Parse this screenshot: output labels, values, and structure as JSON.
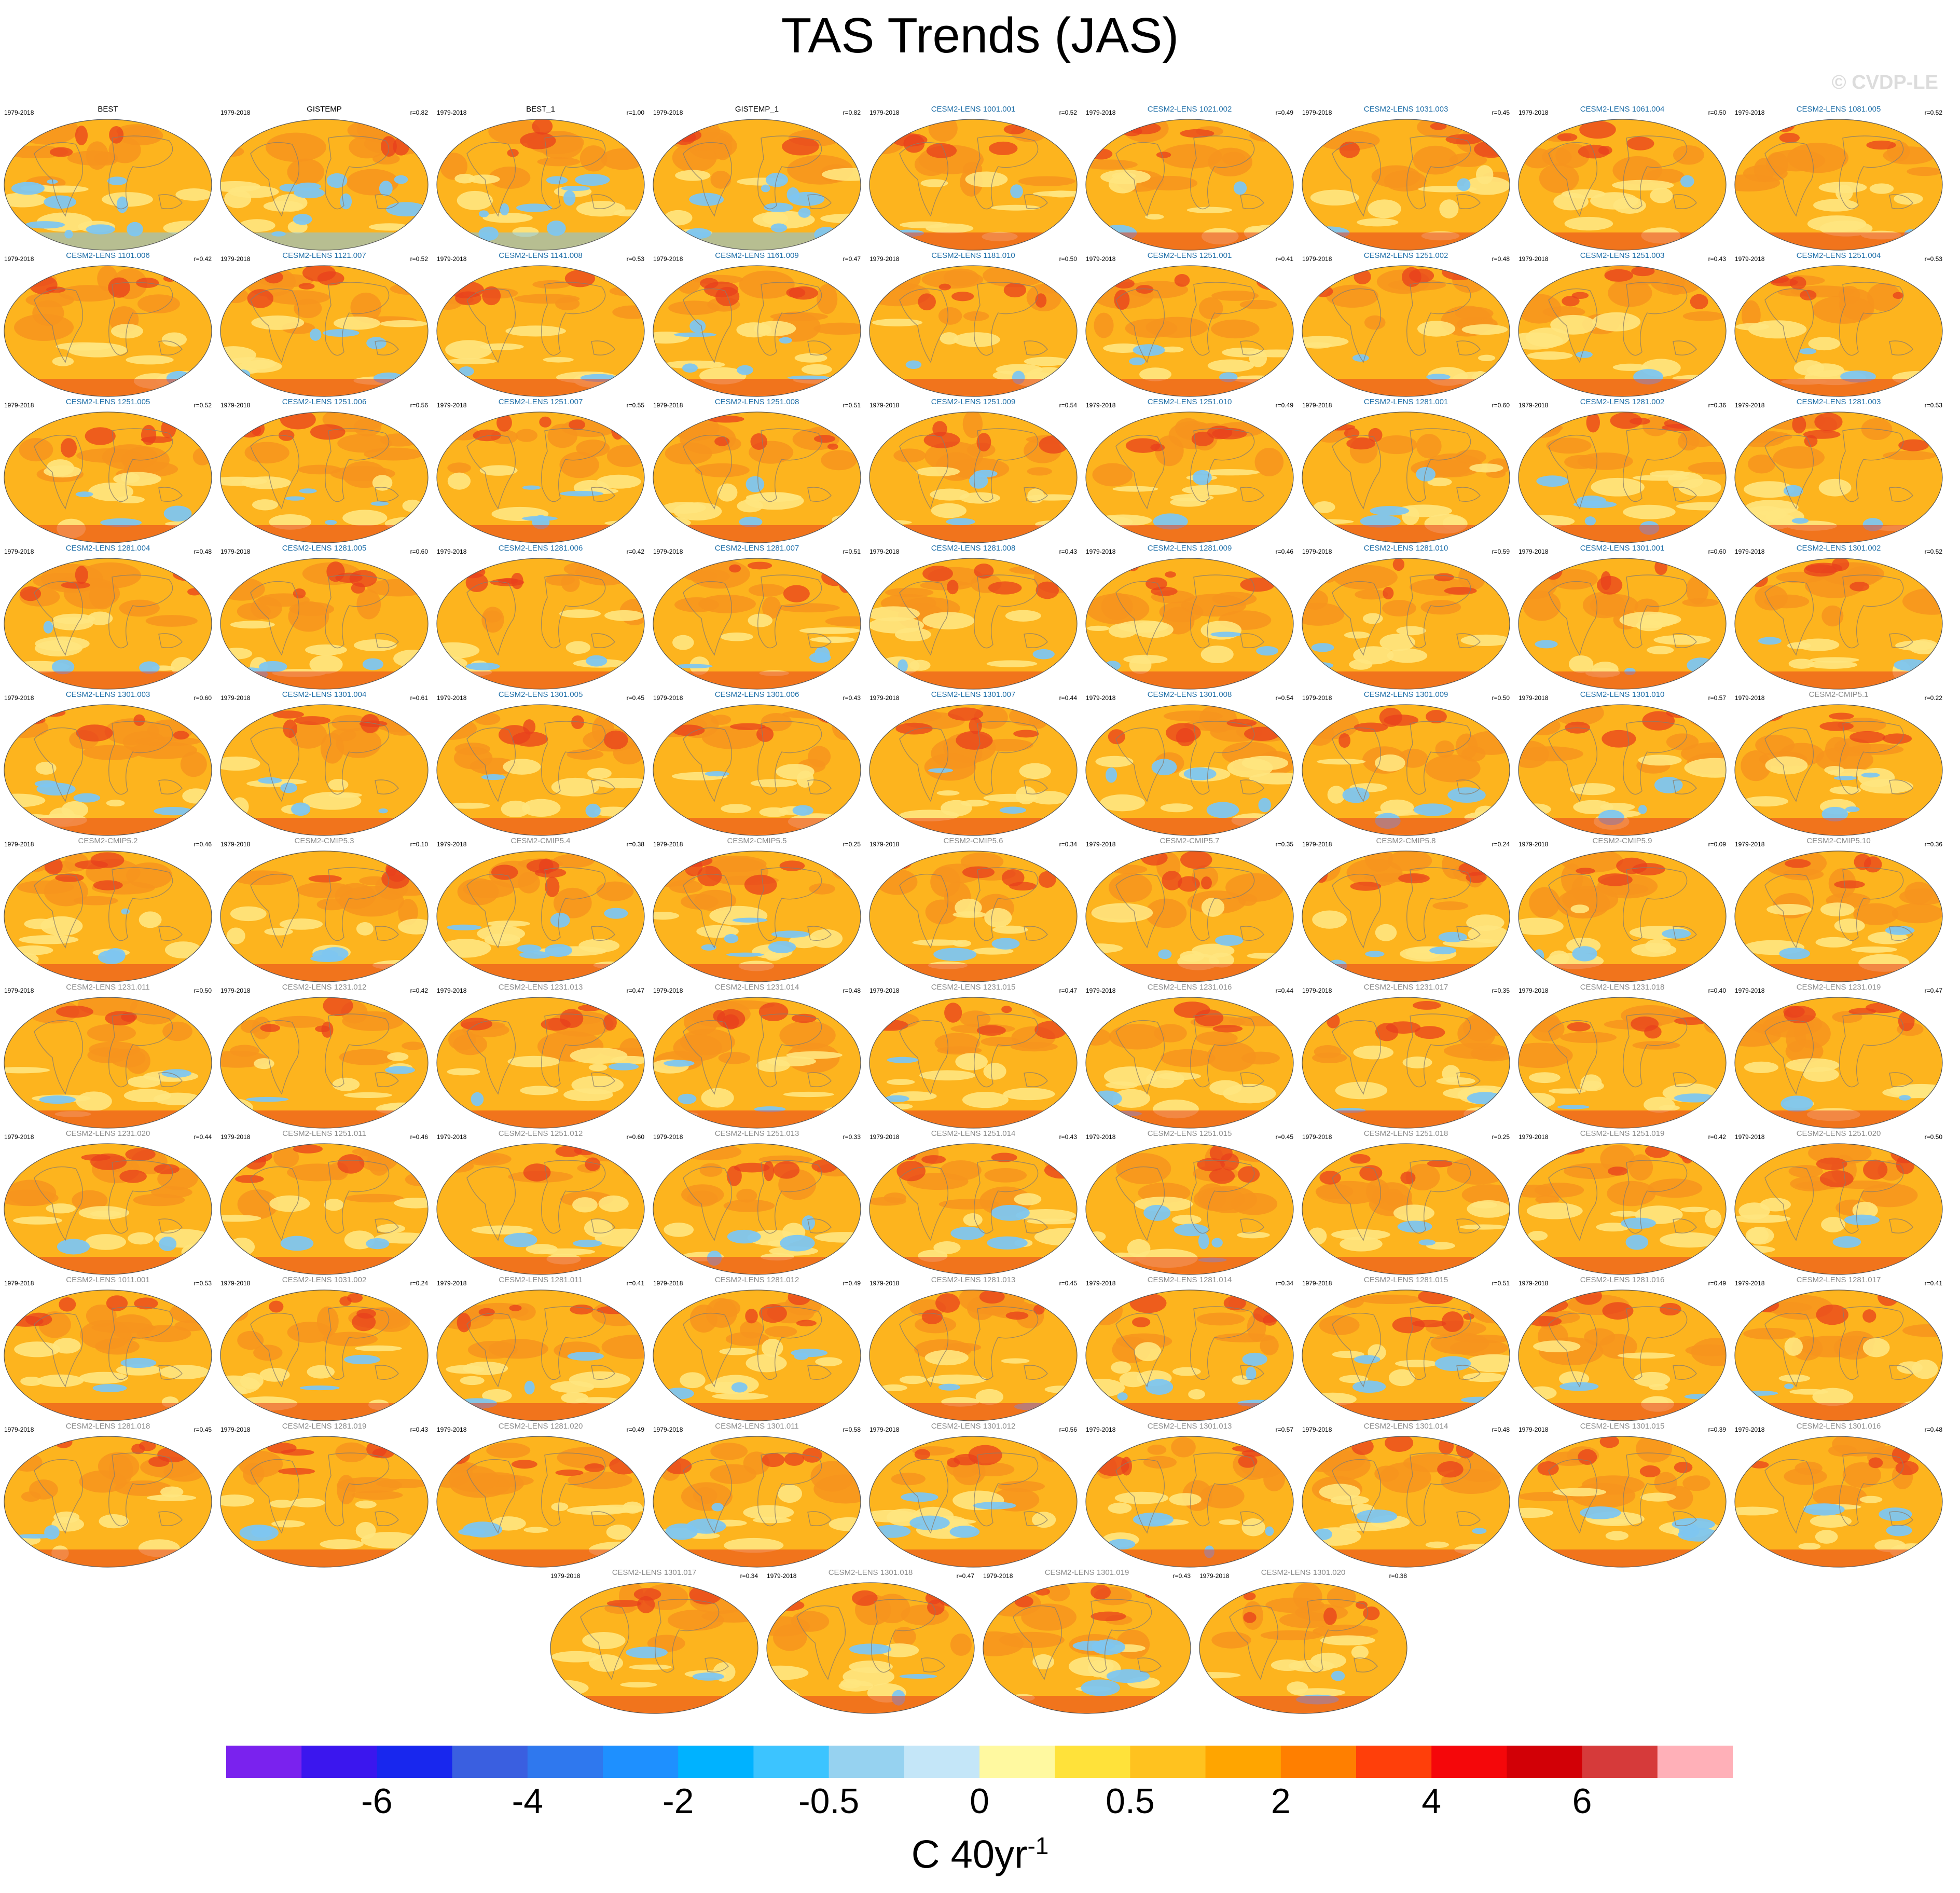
{
  "title": "TAS Trends (JAS)",
  "watermark": "© CVDP-LE",
  "period": "1979-2018",
  "colors": {
    "obs_title": "#000000",
    "lens_title": "#1f6fa8",
    "cmip_title": "#8c8c8c",
    "coastline": "#8b7d6b",
    "map_base": "#fdb41e",
    "map_warm": "#f7941d",
    "map_hot": "#e8401c",
    "map_cool": "#ffe680",
    "map_cold": "#7ec6f0"
  },
  "colorbar": {
    "colors": [
      "#7a22ee",
      "#3b16ee",
      "#1827ee",
      "#3a5fe0",
      "#2f78ee",
      "#1e90ff",
      "#00b2ff",
      "#3cc4ff",
      "#96d2f0",
      "#c4e6f8",
      "#fff9a0",
      "#ffe23a",
      "#ffc21f",
      "#ffa500",
      "#ff7f00",
      "#ff3f0a",
      "#f5070a",
      "#d20006",
      "#d63a3a",
      "#ffb0b8"
    ],
    "labels": [
      "-6",
      "-4",
      "-2",
      "-0.5",
      "0",
      "0.5",
      "2",
      "4",
      "6"
    ],
    "units_main": "C 40yr",
    "units_sup": "-1"
  },
  "chart_data": {
    "type": "map-panels",
    "title": "TAS Trends (JAS)",
    "period": "1979-2018",
    "units": "C 40yr-1",
    "panels": [
      {
        "name": "BEST",
        "r": "",
        "kind": "obs",
        "cool": 0.22
      },
      {
        "name": "GISTEMP",
        "r": "r=0.82",
        "kind": "obs",
        "cool": 0.24
      },
      {
        "name": "BEST_1",
        "r": "r=1.00",
        "kind": "obs",
        "cool": 0.22
      },
      {
        "name": "GISTEMP_1",
        "r": "r=0.82",
        "kind": "obs",
        "cool": 0.24
      },
      {
        "name": "CESM2-LENS 1001.001",
        "r": "r=0.52",
        "kind": "lens",
        "cool": 0.06
      },
      {
        "name": "CESM2-LENS 1021.002",
        "r": "r=0.49",
        "kind": "lens",
        "cool": 0.04
      },
      {
        "name": "CESM2-LENS 1031.003",
        "r": "r=0.45",
        "kind": "lens",
        "cool": 0.05
      },
      {
        "name": "CESM2-LENS 1061.004",
        "r": "r=0.50",
        "kind": "lens",
        "cool": 0.06
      },
      {
        "name": "CESM2-LENS 1081.005",
        "r": "r=0.52",
        "kind": "lens",
        "cool": 0.04
      },
      {
        "name": "CESM2-LENS 1101.006",
        "r": "r=0.42",
        "kind": "lens",
        "cool": 0.05
      },
      {
        "name": "CESM2-LENS 1121.007",
        "r": "r=0.52",
        "kind": "lens",
        "cool": 0.12
      },
      {
        "name": "CESM2-LENS 1141.008",
        "r": "r=0.53",
        "kind": "lens",
        "cool": 0.06
      },
      {
        "name": "CESM2-LENS 1161.009",
        "r": "r=0.47",
        "kind": "lens",
        "cool": 0.14
      },
      {
        "name": "CESM2-LENS 1181.010",
        "r": "r=0.50",
        "kind": "lens",
        "cool": 0.05
      },
      {
        "name": "CESM2-LENS 1251.001",
        "r": "r=0.41",
        "kind": "lens",
        "cool": 0.07
      },
      {
        "name": "CESM2-LENS 1251.002",
        "r": "r=0.48",
        "kind": "lens",
        "cool": 0.05
      },
      {
        "name": "CESM2-LENS 1251.003",
        "r": "r=0.43",
        "kind": "lens",
        "cool": 0.06
      },
      {
        "name": "CESM2-LENS 1251.004",
        "r": "r=0.53",
        "kind": "lens",
        "cool": 0.04
      },
      {
        "name": "CESM2-LENS 1251.005",
        "r": "r=0.52",
        "kind": "lens",
        "cool": 0.08
      },
      {
        "name": "CESM2-LENS 1251.006",
        "r": "r=0.56",
        "kind": "lens",
        "cool": 0.1
      },
      {
        "name": "CESM2-LENS 1251.007",
        "r": "r=0.55",
        "kind": "lens",
        "cool": 0.09
      },
      {
        "name": "CESM2-LENS 1251.008",
        "r": "r=0.51",
        "kind": "lens",
        "cool": 0.05
      },
      {
        "name": "CESM2-LENS 1251.009",
        "r": "r=0.54",
        "kind": "lens",
        "cool": 0.08
      },
      {
        "name": "CESM2-LENS 1251.010",
        "r": "r=0.49",
        "kind": "lens",
        "cool": 0.04
      },
      {
        "name": "CESM2-LENS 1281.001",
        "r": "r=0.60",
        "kind": "lens",
        "cool": 0.07
      },
      {
        "name": "CESM2-LENS 1281.002",
        "r": "r=0.36",
        "kind": "lens",
        "cool": 0.13
      },
      {
        "name": "CESM2-LENS 1281.003",
        "r": "r=0.53",
        "kind": "lens",
        "cool": 0.08
      },
      {
        "name": "CESM2-LENS 1281.004",
        "r": "r=0.48",
        "kind": "lens",
        "cool": 0.07
      },
      {
        "name": "CESM2-LENS 1281.005",
        "r": "r=0.60",
        "kind": "lens",
        "cool": 0.08
      },
      {
        "name": "CESM2-LENS 1281.006",
        "r": "r=0.42",
        "kind": "lens",
        "cool": 0.05
      },
      {
        "name": "CESM2-LENS 1281.007",
        "r": "r=0.51",
        "kind": "lens",
        "cool": 0.07
      },
      {
        "name": "CESM2-LENS 1281.008",
        "r": "r=0.43",
        "kind": "lens",
        "cool": 0.06
      },
      {
        "name": "CESM2-LENS 1281.009",
        "r": "r=0.46",
        "kind": "lens",
        "cool": 0.07
      },
      {
        "name": "CESM2-LENS 1281.010",
        "r": "r=0.59",
        "kind": "lens",
        "cool": 0.06
      },
      {
        "name": "CESM2-LENS 1301.001",
        "r": "r=0.60",
        "kind": "lens",
        "cool": 0.07
      },
      {
        "name": "CESM2-LENS 1301.002",
        "r": "r=0.52",
        "kind": "lens",
        "cool": 0.06
      },
      {
        "name": "CESM2-LENS 1301.003",
        "r": "r=0.60",
        "kind": "lens",
        "cool": 0.09
      },
      {
        "name": "CESM2-LENS 1301.004",
        "r": "r=0.61",
        "kind": "lens",
        "cool": 0.1
      },
      {
        "name": "CESM2-LENS 1301.005",
        "r": "r=0.45",
        "kind": "lens",
        "cool": 0.06
      },
      {
        "name": "CESM2-LENS 1301.006",
        "r": "r=0.43",
        "kind": "lens",
        "cool": 0.06
      },
      {
        "name": "CESM2-LENS 1301.007",
        "r": "r=0.44",
        "kind": "lens",
        "cool": 0.05
      },
      {
        "name": "CESM2-LENS 1301.008",
        "r": "r=0.54",
        "kind": "lens",
        "cool": 0.12
      },
      {
        "name": "CESM2-LENS 1301.009",
        "r": "r=0.50",
        "kind": "lens",
        "cool": 0.09
      },
      {
        "name": "CESM2-LENS 1301.010",
        "r": "r=0.57",
        "kind": "lens",
        "cool": 0.07
      },
      {
        "name": "CESM2-CMIP5.1",
        "r": "r=0.22",
        "kind": "cmip",
        "cool": 0.1
      },
      {
        "name": "CESM2-CMIP5.2",
        "r": "r=0.46",
        "kind": "cmip",
        "cool": 0.08
      },
      {
        "name": "CESM2-CMIP5.3",
        "r": "r=0.10",
        "kind": "cmip",
        "cool": 0.08
      },
      {
        "name": "CESM2-CMIP5.4",
        "r": "r=0.38",
        "kind": "cmip",
        "cool": 0.14
      },
      {
        "name": "CESM2-CMIP5.5",
        "r": "r=0.25",
        "kind": "cmip",
        "cool": 0.15
      },
      {
        "name": "CESM2-CMIP5.6",
        "r": "r=0.34",
        "kind": "cmip",
        "cool": 0.06
      },
      {
        "name": "CESM2-CMIP5.7",
        "r": "r=0.35",
        "kind": "cmip",
        "cool": 0.05
      },
      {
        "name": "CESM2-CMIP5.8",
        "r": "r=0.24",
        "kind": "cmip",
        "cool": 0.1
      },
      {
        "name": "CESM2-CMIP5.9",
        "r": "r=0.09",
        "kind": "cmip",
        "cool": 0.07
      },
      {
        "name": "CESM2-CMIP5.10",
        "r": "r=0.36",
        "kind": "cmip",
        "cool": 0.06
      },
      {
        "name": "CESM2-LENS 1231.011",
        "r": "r=0.50",
        "kind": "cmip",
        "cool": 0.06
      },
      {
        "name": "CESM2-LENS 1231.012",
        "r": "r=0.42",
        "kind": "cmip",
        "cool": 0.06
      },
      {
        "name": "CESM2-LENS 1231.013",
        "r": "r=0.47",
        "kind": "cmip",
        "cool": 0.05
      },
      {
        "name": "CESM2-LENS 1231.014",
        "r": "r=0.48",
        "kind": "cmip",
        "cool": 0.07
      },
      {
        "name": "CESM2-LENS 1231.015",
        "r": "r=0.47",
        "kind": "cmip",
        "cool": 0.06
      },
      {
        "name": "CESM2-LENS 1231.016",
        "r": "r=0.44",
        "kind": "cmip",
        "cool": 0.06
      },
      {
        "name": "CESM2-LENS 1231.017",
        "r": "r=0.35",
        "kind": "cmip",
        "cool": 0.06
      },
      {
        "name": "CESM2-LENS 1231.018",
        "r": "r=0.40",
        "kind": "cmip",
        "cool": 0.05
      },
      {
        "name": "CESM2-LENS 1231.019",
        "r": "r=0.47",
        "kind": "cmip",
        "cool": 0.05
      },
      {
        "name": "CESM2-LENS 1231.020",
        "r": "r=0.44",
        "kind": "cmip",
        "cool": 0.05
      },
      {
        "name": "CESM2-LENS 1251.011",
        "r": "r=0.46",
        "kind": "cmip",
        "cool": 0.06
      },
      {
        "name": "CESM2-LENS 1251.012",
        "r": "r=0.60",
        "kind": "cmip",
        "cool": 0.05
      },
      {
        "name": "CESM2-LENS 1251.013",
        "r": "r=0.33",
        "kind": "cmip",
        "cool": 0.1
      },
      {
        "name": "CESM2-LENS 1251.014",
        "r": "r=0.43",
        "kind": "cmip",
        "cool": 0.07
      },
      {
        "name": "CESM2-LENS 1251.015",
        "r": "r=0.45",
        "kind": "cmip",
        "cool": 0.12
      },
      {
        "name": "CESM2-LENS 1251.018",
        "r": "r=0.25",
        "kind": "cmip",
        "cool": 0.06
      },
      {
        "name": "CESM2-LENS 1251.019",
        "r": "r=0.42",
        "kind": "cmip",
        "cool": 0.06
      },
      {
        "name": "CESM2-LENS 1251.020",
        "r": "r=0.50",
        "kind": "cmip",
        "cool": 0.05
      },
      {
        "name": "CESM2-LENS 1011.001",
        "r": "r=0.53",
        "kind": "cmip",
        "cool": 0.05
      },
      {
        "name": "CESM2-LENS 1031.002",
        "r": "r=0.24",
        "kind": "cmip",
        "cool": 0.05
      },
      {
        "name": "CESM2-LENS 1281.011",
        "r": "r=0.41",
        "kind": "cmip",
        "cool": 0.07
      },
      {
        "name": "CESM2-LENS 1281.012",
        "r": "r=0.49",
        "kind": "cmip",
        "cool": 0.09
      },
      {
        "name": "CESM2-LENS 1281.013",
        "r": "r=0.45",
        "kind": "cmip",
        "cool": 0.04
      },
      {
        "name": "CESM2-LENS 1281.014",
        "r": "r=0.34",
        "kind": "cmip",
        "cool": 0.13
      },
      {
        "name": "CESM2-LENS 1281.015",
        "r": "r=0.51",
        "kind": "cmip",
        "cool": 0.1
      },
      {
        "name": "CESM2-LENS 1281.016",
        "r": "r=0.49",
        "kind": "cmip",
        "cool": 0.06
      },
      {
        "name": "CESM2-LENS 1281.017",
        "r": "r=0.41",
        "kind": "cmip",
        "cool": 0.05
      },
      {
        "name": "CESM2-LENS 1281.018",
        "r": "r=0.45",
        "kind": "cmip",
        "cool": 0.06
      },
      {
        "name": "CESM2-LENS 1281.019",
        "r": "r=0.43",
        "kind": "cmip",
        "cool": 0.06
      },
      {
        "name": "CESM2-LENS 1281.020",
        "r": "r=0.49",
        "kind": "cmip",
        "cool": 0.05
      },
      {
        "name": "CESM2-LENS 1301.011",
        "r": "r=0.58",
        "kind": "cmip",
        "cool": 0.08
      },
      {
        "name": "CESM2-LENS 1301.012",
        "r": "r=0.56",
        "kind": "cmip",
        "cool": 0.13
      },
      {
        "name": "CESM2-LENS 1301.013",
        "r": "r=0.57",
        "kind": "cmip",
        "cool": 0.09
      },
      {
        "name": "CESM2-LENS 1301.014",
        "r": "r=0.48",
        "kind": "cmip",
        "cool": 0.07
      },
      {
        "name": "CESM2-LENS 1301.015",
        "r": "r=0.39",
        "kind": "cmip",
        "cool": 0.1
      },
      {
        "name": "CESM2-LENS 1301.016",
        "r": "r=0.48",
        "kind": "cmip",
        "cool": 0.08
      },
      {
        "name": "CESM2-LENS 1301.017",
        "r": "r=0.34",
        "kind": "cmip",
        "cool": 0.06
      },
      {
        "name": "CESM2-LENS 1301.018",
        "r": "r=0.47",
        "kind": "cmip",
        "cool": 0.08
      },
      {
        "name": "CESM2-LENS 1301.019",
        "r": "r=0.43",
        "kind": "cmip",
        "cool": 0.09
      },
      {
        "name": "CESM2-LENS 1301.020",
        "r": "r=0.38",
        "kind": "cmip",
        "cool": 0.05
      }
    ]
  }
}
